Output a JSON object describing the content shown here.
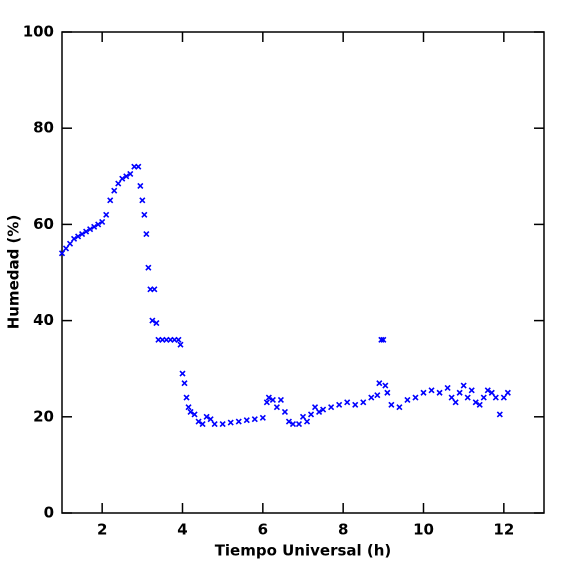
{
  "chart_data": {
    "type": "scatter",
    "xlabel": "Tiempo Universal (h)",
    "ylabel": "Humedad (%)",
    "color": "#0000ff",
    "x": [
      1.0,
      1.1,
      1.2,
      1.3,
      1.4,
      1.5,
      1.6,
      1.7,
      1.8,
      1.9,
      2.0,
      2.1,
      2.2,
      2.3,
      2.4,
      2.5,
      2.6,
      2.7,
      2.8,
      2.9,
      2.95,
      3.0,
      3.05,
      3.1,
      3.15,
      3.2,
      3.25,
      3.3,
      3.35,
      3.4,
      3.5,
      3.6,
      3.7,
      3.8,
      3.9,
      3.95,
      4.0,
      4.05,
      4.1,
      4.15,
      4.2,
      4.3,
      4.4,
      4.5,
      4.6,
      4.7,
      4.8,
      5.0,
      5.2,
      5.4,
      5.6,
      5.8,
      6.0,
      6.1,
      6.15,
      6.25,
      6.35,
      6.45,
      6.55,
      6.65,
      6.75,
      6.9,
      7.0,
      7.1,
      7.2,
      7.3,
      7.4,
      7.5,
      7.7,
      7.9,
      8.1,
      8.3,
      8.5,
      8.7,
      8.85,
      8.9,
      8.95,
      9.0,
      9.05,
      9.1,
      9.2,
      9.4,
      9.6,
      9.8,
      10.0,
      10.2,
      10.4,
      10.6,
      10.7,
      10.8,
      10.9,
      11.0,
      11.1,
      11.2,
      11.3,
      11.4,
      11.5,
      11.6,
      11.7,
      11.8,
      11.9,
      12.0,
      12.1
    ],
    "values": [
      54,
      55,
      56,
      57,
      57.5,
      58,
      58.5,
      59,
      59.5,
      60,
      60.5,
      62,
      65,
      67,
      68.5,
      69.5,
      70,
      70.5,
      72,
      72,
      68,
      65,
      62,
      58,
      51,
      46.5,
      40,
      46.5,
      39.5,
      36,
      36,
      36,
      36,
      36,
      36,
      35,
      29,
      27,
      24,
      22,
      21,
      20.5,
      19,
      18.5,
      20,
      19.5,
      18.5,
      18.5,
      18.8,
      19,
      19.3,
      19.5,
      19.8,
      23,
      24,
      23.5,
      22,
      23.5,
      21,
      19,
      18.5,
      18.5,
      20,
      19,
      20.5,
      22,
      21,
      21.5,
      22,
      22.5,
      23,
      22.5,
      23,
      24,
      24.5,
      27,
      36,
      36,
      26.5,
      25,
      22.5,
      22,
      23.5,
      24,
      25,
      25.5,
      25,
      26,
      24,
      23,
      25,
      26.5,
      24,
      25.5,
      23,
      22.5,
      24,
      25.5,
      25,
      24,
      20.5,
      24,
      25
    ],
    "xlim": [
      1,
      13
    ],
    "ylim": [
      0,
      100
    ],
    "xticks": [
      2,
      4,
      6,
      8,
      10,
      12
    ],
    "yticks": [
      0,
      20,
      40,
      60,
      80,
      100
    ]
  }
}
